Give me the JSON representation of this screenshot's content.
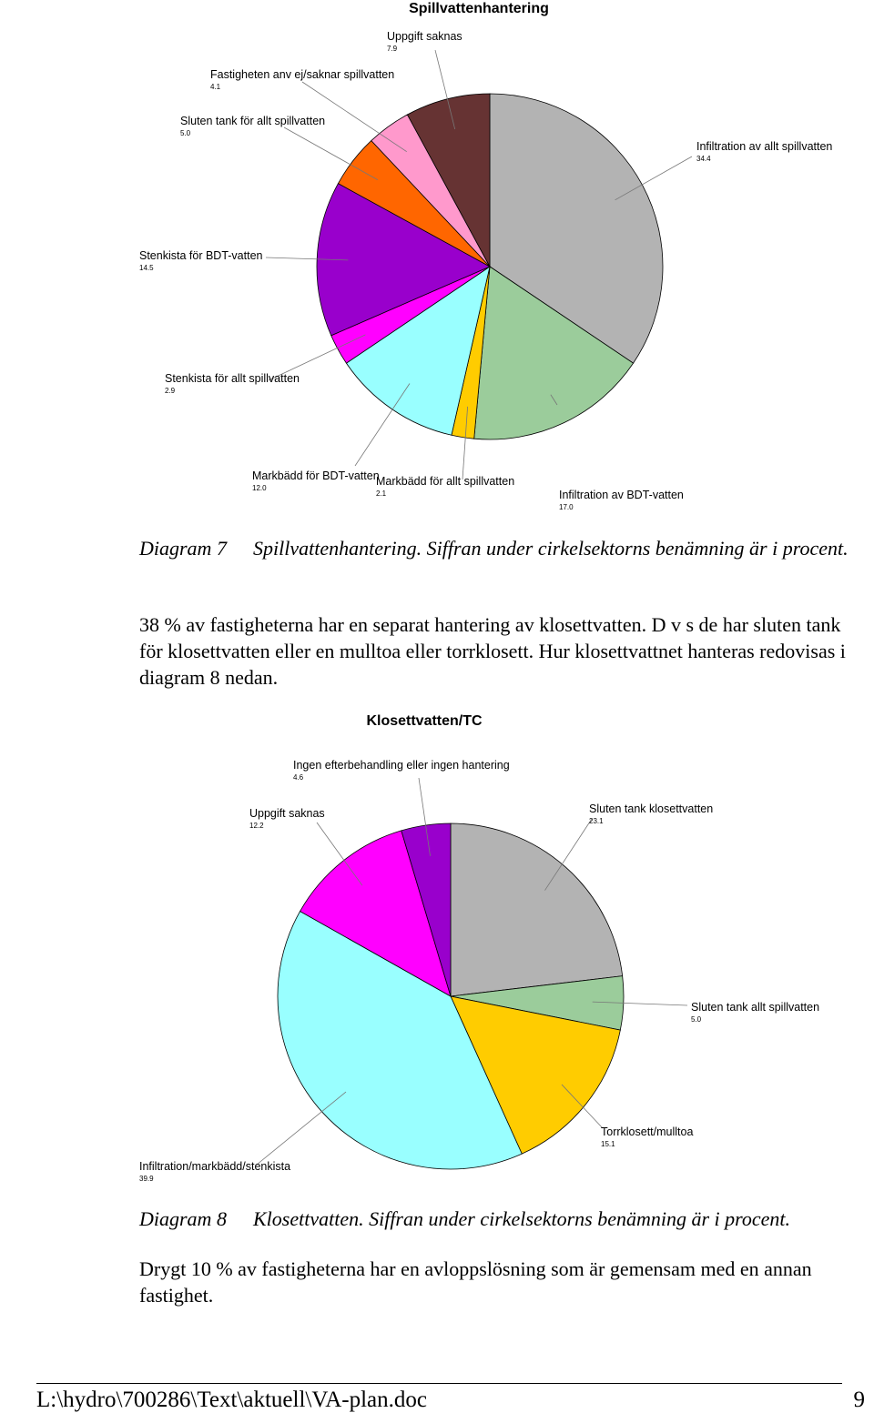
{
  "chart_data": [
    {
      "type": "pie",
      "title": "Spillvattenhantering",
      "labels": [
        "Infiltration av allt spillvatten",
        "Infiltration av BDT-vatten",
        "Markbädd för allt spillvatten",
        "Markbädd för BDT-vatten",
        "Stenkista för allt spillvatten",
        "Stenkista för BDT-vatten",
        "Sluten tank för allt spillvatten",
        "Fastigheten anv ej/saknar spillvatten",
        "Uppgift saknas"
      ],
      "values": [
        34.4,
        17.0,
        2.1,
        12.0,
        2.9,
        14.5,
        5.0,
        4.1,
        7.9
      ],
      "value_labels": [
        "34.4",
        "17.0",
        "2.1",
        "12.0",
        "2.9",
        "14.5",
        "5.0",
        "4.1",
        "7.9"
      ],
      "colors": [
        "#b3b3b3",
        "#9bcc9b",
        "#ffcc00",
        "#99ffff",
        "#ff00ff",
        "#9900cc",
        "#ff6600",
        "#ff99cc",
        "#663333"
      ]
    },
    {
      "type": "pie",
      "title": "Klosettvatten/TC",
      "labels": [
        "Sluten tank klosettvatten",
        "Sluten tank allt spillvatten",
        "Torrklosett/mulltoa",
        "Infiltration/markbädd/stenkista",
        "Uppgift saknas",
        "Ingen efterbehandling eller ingen hantering"
      ],
      "values": [
        23.1,
        5.0,
        15.1,
        39.9,
        12.2,
        4.6
      ],
      "value_labels": [
        "23.1",
        "5.0",
        "15.1",
        "39.9",
        "12.2",
        "4.6"
      ],
      "colors": [
        "#b3b3b3",
        "#9bcc9b",
        "#ffcc00",
        "#99ffff",
        "#ff00ff",
        "#9900cc"
      ]
    }
  ],
  "captions": [
    {
      "label": "Diagram 7",
      "text": "Spillvattenhantering. Siffran under cirkelsektorns benämning är i procent."
    },
    {
      "label": "Diagram 8",
      "text": "Klosettvatten. Siffran under cirkelsektorns benämning är i procent."
    }
  ],
  "paragraphs": [
    "38 % av fastigheterna har en separat hantering av klosettvatten. D v s de har sluten tank för klosettvatten eller en mulltoa eller torrklosett. Hur klosettvattnet hanteras redovisas i diagram 8 nedan.",
    "Drygt 10 % av fastigheterna har en avloppslösning som är gemensam med en annan fastighet."
  ],
  "footer": {
    "path": "L:\\hydro\\700286\\Text\\aktuell\\VA-plan.doc",
    "page": "9"
  }
}
